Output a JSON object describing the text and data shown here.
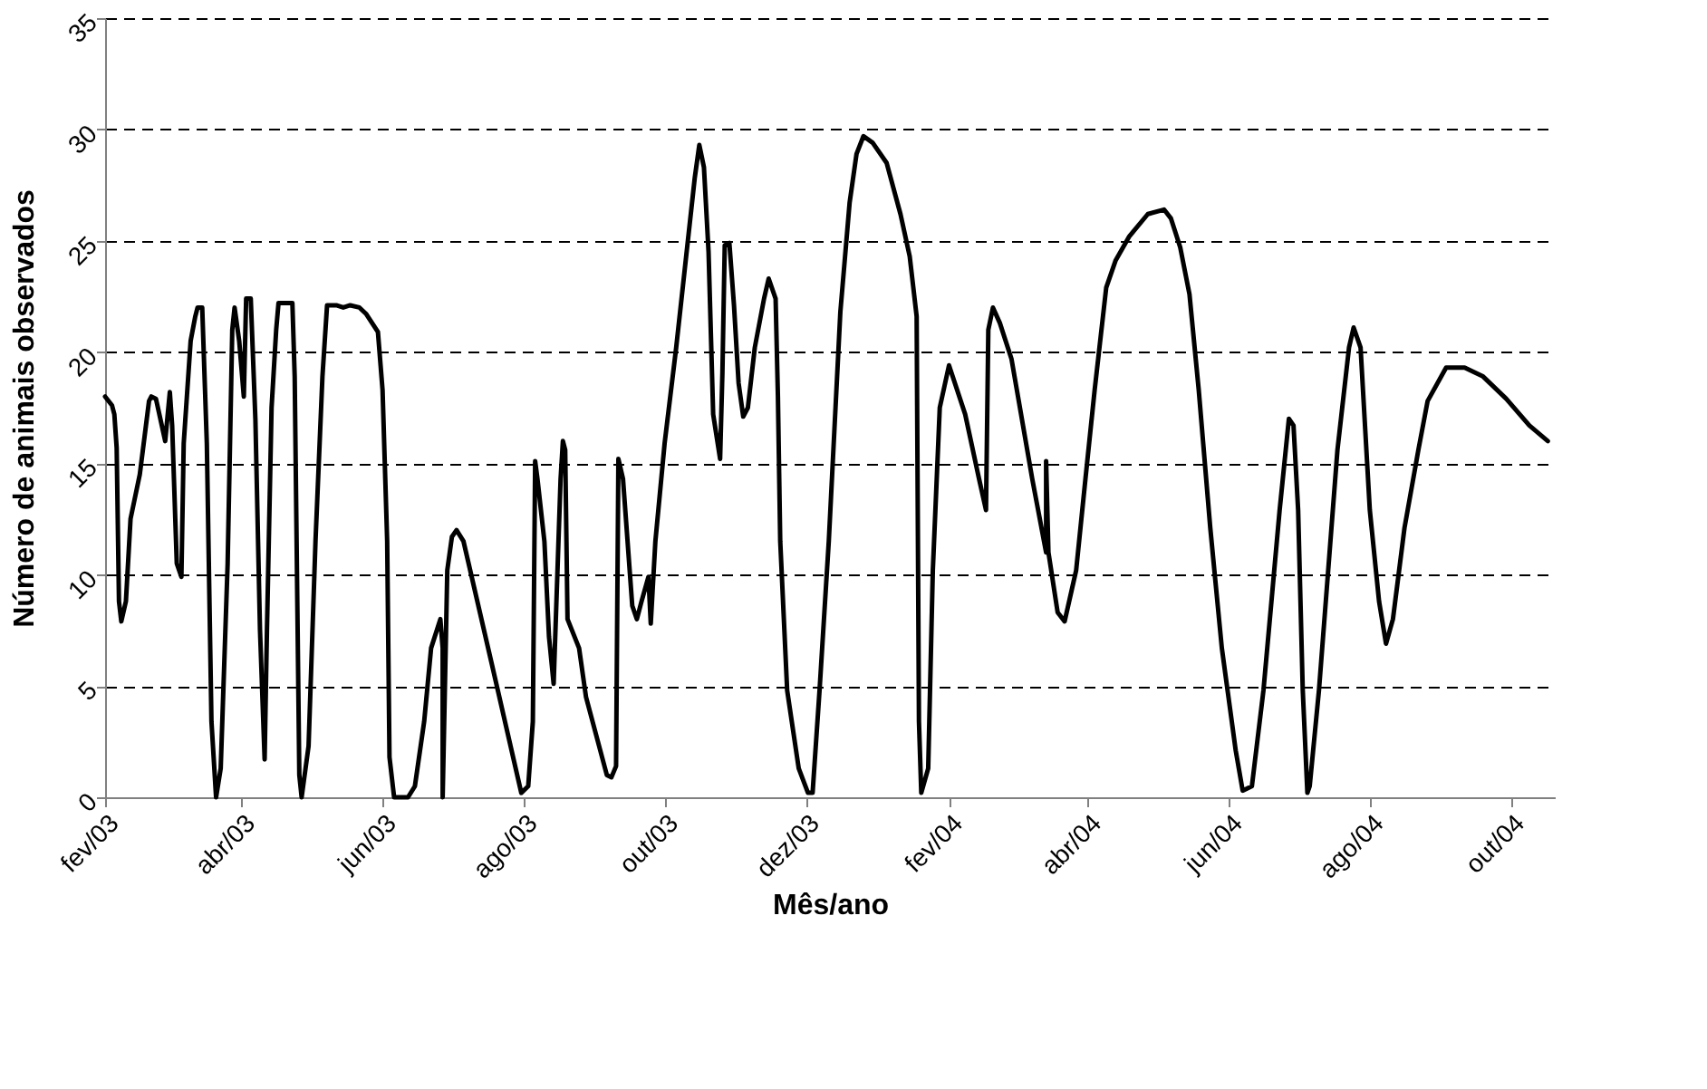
{
  "chart_data": {
    "type": "line",
    "xlabel": "Mês/ano",
    "ylabel": "Número de animais observados",
    "xlim": [
      "2003-02-01",
      "2004-10-20"
    ],
    "ylim": [
      0,
      35
    ],
    "yticks": [
      0,
      5,
      10,
      15,
      20,
      25,
      30,
      35
    ],
    "xticks": [
      {
        "value": "2003-02",
        "label": "fev/03"
      },
      {
        "value": "2003-04",
        "label": "abr/03"
      },
      {
        "value": "2003-06",
        "label": "jun/03"
      },
      {
        "value": "2003-08",
        "label": "ago/03"
      },
      {
        "value": "2003-10",
        "label": "out/03"
      },
      {
        "value": "2003-12",
        "label": "dez/03"
      },
      {
        "value": "2004-02",
        "label": "fev/04"
      },
      {
        "value": "2004-04",
        "label": "abr/04"
      },
      {
        "value": "2004-06",
        "label": "jun/04"
      },
      {
        "value": "2004-08",
        "label": "ago/04"
      },
      {
        "value": "2004-10",
        "label": "out/04"
      }
    ],
    "grid": "y",
    "line_style": "solid",
    "series": [
      {
        "color": "#000000",
        "x": [
          "2003-02-01",
          "2003-02-04",
          "2003-02-05",
          "2003-02-06",
          "2003-02-07",
          "2003-02-08",
          "2003-02-10",
          "2003-02-12",
          "2003-02-16",
          "2003-02-20",
          "2003-02-21",
          "2003-02-23",
          "2003-02-27",
          "2003-02-28",
          "2003-03-01",
          "2003-03-02",
          "2003-03-04",
          "2003-03-06",
          "2003-03-07",
          "2003-03-10",
          "2003-03-12",
          "2003-03-13",
          "2003-03-15",
          "2003-03-17",
          "2003-03-19",
          "2003-03-21",
          "2003-03-23",
          "2003-03-26",
          "2003-03-28",
          "2003-03-29",
          "2003-03-31",
          "2003-04-02",
          "2003-04-03",
          "2003-04-05",
          "2003-04-07",
          "2003-04-09",
          "2003-04-11",
          "2003-04-12",
          "2003-04-14",
          "2003-04-16",
          "2003-04-17",
          "2003-04-23",
          "2003-04-24",
          "2003-04-26",
          "2003-04-27",
          "2003-04-30",
          "2003-05-03",
          "2003-05-06",
          "2003-05-08",
          "2003-05-12",
          "2003-05-15",
          "2003-05-18",
          "2003-05-22",
          "2003-05-25",
          "2003-05-30",
          "2003-06-01",
          "2003-06-03",
          "2003-06-04",
          "2003-06-06",
          "2003-06-12",
          "2003-06-15",
          "2003-06-19",
          "2003-06-22",
          "2003-06-26",
          "2003-06-27",
          "2003-06-27",
          "2003-06-29",
          "2003-07-01",
          "2003-07-03",
          "2003-07-06",
          "2003-07-18",
          "2003-07-31",
          "2003-08-03",
          "2003-08-05",
          "2003-08-06",
          "2003-08-07",
          "2003-08-10",
          "2003-08-12",
          "2003-08-14",
          "2003-08-17",
          "2003-08-18",
          "2003-08-19",
          "2003-08-20",
          "2003-08-25",
          "2003-08-28",
          "2003-09-06",
          "2003-09-08",
          "2003-09-10",
          "2003-09-11",
          "2003-09-13",
          "2003-09-17",
          "2003-09-19",
          "2003-09-21",
          "2003-09-24",
          "2003-09-25",
          "2003-09-27",
          "2003-10-01",
          "2003-10-06",
          "2003-10-10",
          "2003-10-14",
          "2003-10-16",
          "2003-10-18",
          "2003-10-20",
          "2003-10-22",
          "2003-10-25",
          "2003-10-26",
          "2003-10-27",
          "2003-10-29",
          "2003-10-31",
          "2003-11-02",
          "2003-11-04",
          "2003-11-06",
          "2003-11-09",
          "2003-11-13",
          "2003-11-15",
          "2003-11-18",
          "2003-11-19",
          "2003-11-20",
          "2003-11-23",
          "2003-11-28",
          "2003-12-02",
          "2003-12-04",
          "2003-12-07",
          "2003-12-11",
          "2003-12-16",
          "2003-12-20",
          "2003-12-23",
          "2003-12-26",
          "2003-12-30",
          "2004-01-05",
          "2004-01-11",
          "2004-01-15",
          "2004-01-18",
          "2004-01-19",
          "2004-01-20",
          "2004-01-23",
          "2004-01-25",
          "2004-01-28",
          "2004-02-01",
          "2004-02-08",
          "2004-02-14",
          "2004-02-17",
          "2004-02-18",
          "2004-02-20",
          "2004-02-23",
          "2004-02-28",
          "2004-03-08",
          "2004-03-14",
          "2004-03-14",
          "2004-03-15",
          "2004-03-19",
          "2004-03-22",
          "2004-03-27",
          "2004-03-31",
          "2004-04-04",
          "2004-04-09",
          "2004-04-13",
          "2004-04-19",
          "2004-04-27",
          "2004-05-04",
          "2004-05-07",
          "2004-05-11",
          "2004-05-15",
          "2004-05-19",
          "2004-05-24",
          "2004-05-29",
          "2004-06-04",
          "2004-06-07",
          "2004-06-11",
          "2004-06-16",
          "2004-06-23",
          "2004-06-27",
          "2004-06-29",
          "2004-07-01",
          "2004-07-03",
          "2004-07-05",
          "2004-07-06",
          "2004-07-10",
          "2004-07-14",
          "2004-07-18",
          "2004-07-23",
          "2004-07-25",
          "2004-07-28",
          "2004-08-01",
          "2004-08-05",
          "2004-08-08",
          "2004-08-11",
          "2004-08-16",
          "2004-08-22",
          "2004-08-26",
          "2004-09-03",
          "2004-09-11",
          "2004-09-19",
          "2004-09-29",
          "2004-10-09",
          "2004-10-17"
        ],
        "values": [
          18.0,
          17.6,
          17.2,
          15.7,
          8.8,
          7.9,
          8.8,
          12.5,
          14.5,
          17.8,
          18.0,
          17.9,
          16.0,
          17.1,
          18.2,
          16.7,
          10.5,
          9.9,
          15.9,
          20.5,
          21.6,
          22.0,
          22.0,
          15.9,
          3.4,
          0,
          1.3,
          10.5,
          21.0,
          22.0,
          20.5,
          18.0,
          22.4,
          22.4,
          17.0,
          7.5,
          1.7,
          7.5,
          17.5,
          21.0,
          22.2,
          22.2,
          18.9,
          1.0,
          0,
          2.3,
          11.5,
          18.9,
          22.1,
          22.1,
          22.0,
          22.1,
          22.0,
          21.7,
          20.9,
          18.3,
          11.5,
          1.8,
          0,
          0,
          0.5,
          3.4,
          6.7,
          8.0,
          6.7,
          0,
          10.2,
          11.7,
          12.0,
          11.5,
          6.1,
          0.2,
          0.5,
          3.4,
          15.1,
          14.3,
          11.5,
          7.2,
          5.1,
          14.3,
          16.0,
          15.6,
          8.0,
          6.7,
          4.5,
          1.0,
          0.9,
          1.4,
          15.2,
          14.3,
          8.6,
          8.0,
          8.8,
          9.9,
          7.8,
          11.5,
          15.9,
          20.2,
          24.0,
          27.8,
          29.3,
          28.3,
          24.5,
          17.2,
          15.2,
          19.1,
          24.8,
          24.9,
          22.1,
          18.6,
          17.1,
          17.5,
          20.2,
          22.4,
          23.3,
          22.4,
          18.0,
          11.5,
          4.8,
          1.3,
          0.2,
          0.2,
          4.8,
          11.5,
          21.8,
          26.7,
          28.9,
          29.7,
          29.4,
          28.5,
          26.2,
          24.3,
          21.6,
          3.4,
          0.2,
          1.3,
          10.2,
          17.5,
          19.4,
          17.2,
          14.3,
          12.9,
          21.0,
          22.0,
          21.3,
          19.7,
          14.3,
          11.0,
          15.1,
          11.0,
          8.3,
          7.9,
          10.2,
          14.3,
          18.3,
          22.9,
          24.1,
          25.2,
          26.2,
          26.4,
          26.0,
          24.7,
          22.6,
          18.3,
          12.1,
          6.7,
          2.1,
          0.3,
          0.5,
          4.8,
          12.9,
          17.0,
          16.7,
          12.9,
          4.8,
          0.2,
          0.5,
          4.8,
          10.2,
          15.6,
          20.2,
          21.1,
          20.2,
          12.9,
          8.8,
          6.9,
          8.0,
          12.1,
          15.6,
          17.8,
          19.3,
          19.3,
          18.9,
          17.9,
          16.7,
          16.0
        ]
      }
    ]
  }
}
